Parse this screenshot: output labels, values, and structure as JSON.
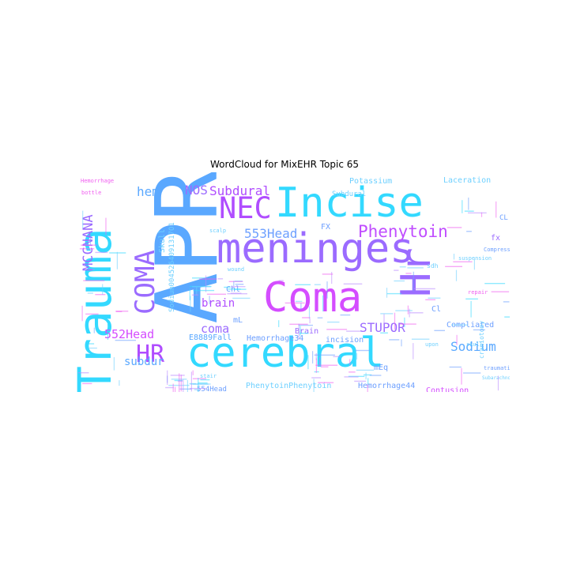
{
  "title": "WordCloud for MixEHR Topic 65",
  "palette": {
    "blue": "#5aa8ff",
    "cyan": "#33d9ff",
    "magenta": "#d44dff",
    "violet": "#9b6bff",
    "pink": "#f060f0",
    "sky": "#6ed0ff",
    "lilac": "#b98cff"
  },
  "words": [
    {
      "text": "APR",
      "color": "#5aa8ff"
    },
    {
      "text": "meninges",
      "color": "#9b6bff"
    },
    {
      "text": "cerebral",
      "color": "#33d9ff"
    },
    {
      "text": "Incise",
      "color": "#33d9ff"
    },
    {
      "text": "Trauma",
      "color": "#33d9ff"
    },
    {
      "text": "Coma",
      "color": "#d44dff"
    },
    {
      "text": "Hr",
      "color": "#9b6bff"
    },
    {
      "text": "NEC",
      "color": "#b04dff"
    },
    {
      "text": "COMA",
      "color": "#9b6bff"
    },
    {
      "text": "HR",
      "color": "#b04dff"
    },
    {
      "text": "MCCNANA",
      "color": "#9b6bff"
    },
    {
      "text": "Phenytoin",
      "color": "#c04dff"
    },
    {
      "text": "553Head",
      "color": "#6ea0ff"
    },
    {
      "text": "552Head",
      "color": "#d44dff"
    },
    {
      "text": "STUPOR",
      "color": "#9b6bff"
    },
    {
      "text": "NOS",
      "color": "#9b6bff"
    },
    {
      "text": "Subdural",
      "color": "#b04dff"
    },
    {
      "text": "hem",
      "color": "#5aa8ff"
    },
    {
      "text": "coma",
      "color": "#9b6bff"
    },
    {
      "text": "brain",
      "color": "#b04dff"
    },
    {
      "text": "Sodium",
      "color": "#5aa8ff"
    },
    {
      "text": "subdur",
      "color": "#5aa8ff"
    },
    {
      "text": "Potassium",
      "color": "#6ed0ff"
    },
    {
      "text": "Laceration",
      "color": "#6ed0ff"
    },
    {
      "text": "Subdural",
      "color": "#6ed0ff"
    },
    {
      "text": "Skull",
      "color": "#6ed0ff"
    },
    {
      "text": "Sodium0045264091317O1",
      "color": "#6ed0ff"
    },
    {
      "text": "E8889Fall",
      "color": "#5aa8ff"
    },
    {
      "text": "Hemorrhage34",
      "color": "#6ea0ff"
    },
    {
      "text": "incision",
      "color": "#6ea0ff"
    },
    {
      "text": "Brain",
      "color": "#9b6bff"
    },
    {
      "text": "mL",
      "color": "#6ea0ff"
    },
    {
      "text": "Chl",
      "color": "#6ea0ff"
    },
    {
      "text": "Cl",
      "color": "#6ea0ff"
    },
    {
      "text": "FX",
      "color": "#6ea0ff"
    },
    {
      "text": "fx",
      "color": "#9b6bff"
    },
    {
      "text": "CL",
      "color": "#6ea0ff"
    },
    {
      "text": "Compliated",
      "color": "#6ea0ff"
    },
    {
      "text": "Hemorrhage44",
      "color": "#6ea0ff"
    },
    {
      "text": "Contusion",
      "color": "#d44dff"
    },
    {
      "text": "554Head",
      "color": "#6ea0ff"
    },
    {
      "text": "PhenytoinPhenytoin",
      "color": "#6ed0ff"
    },
    {
      "text": "mEq",
      "color": "#6ea0ff"
    },
    {
      "text": "craniotomy",
      "color": "#6ed0ff"
    },
    {
      "text": "Hemorrhage",
      "color": "#f060f0"
    },
    {
      "text": "bottle",
      "color": "#f060f0"
    },
    {
      "text": "Compression",
      "color": "#6ea0ff"
    },
    {
      "text": "suspension",
      "color": "#6ed0ff"
    },
    {
      "text": "repair",
      "color": "#f060f0"
    },
    {
      "text": "upon",
      "color": "#6ed0ff"
    },
    {
      "text": "skull",
      "color": "#6ed0ff"
    },
    {
      "text": "sdh",
      "color": "#6ed0ff"
    },
    {
      "text": "traumatic",
      "color": "#6ea0ff"
    },
    {
      "text": "stair",
      "color": "#6ed0ff"
    },
    {
      "text": "scalp",
      "color": "#6ed0ff"
    },
    {
      "text": "wound",
      "color": "#6ed0ff"
    },
    {
      "text": "Subarachnoid",
      "color": "#6ed0ff"
    }
  ]
}
